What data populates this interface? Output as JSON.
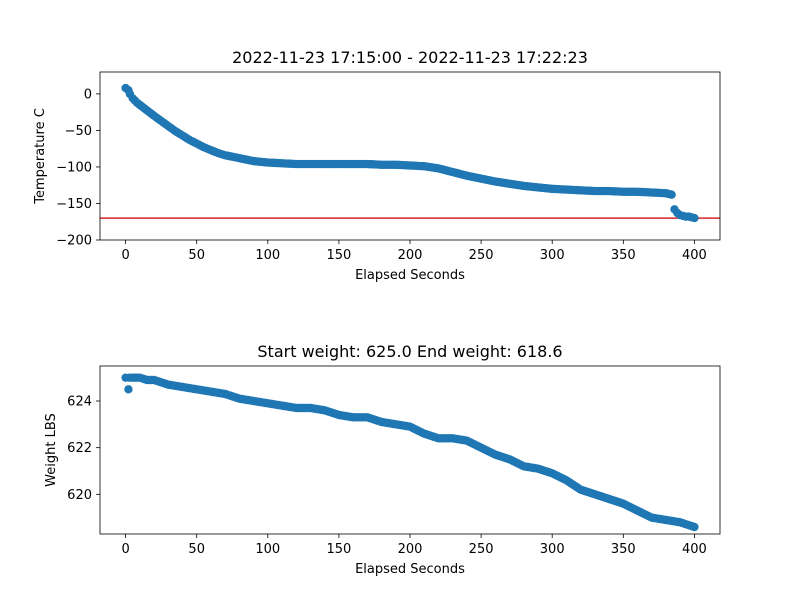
{
  "chart_data": [
    {
      "type": "scatter",
      "title": "2022-11-23 17:15:00 - 2022-11-23 17:22:23",
      "xlabel": "Elapsed Seconds",
      "ylabel": "Temperature C",
      "xlim": [
        -18,
        418
      ],
      "ylim": [
        -200,
        30
      ],
      "xticks": [
        0,
        50,
        100,
        150,
        200,
        250,
        300,
        350,
        400
      ],
      "yticks": [
        -200,
        -150,
        -100,
        -50,
        0
      ],
      "ytick_labels": [
        "−200",
        "−150",
        "−100",
        "−50",
        "0"
      ],
      "grid": false,
      "marker_color": "#1f77b4",
      "reference_line": {
        "y": -170,
        "color": "#d62728"
      },
      "x": [
        0,
        2,
        3,
        5,
        8,
        12,
        16,
        20,
        25,
        30,
        35,
        40,
        45,
        50,
        55,
        60,
        65,
        70,
        75,
        80,
        90,
        100,
        110,
        120,
        130,
        140,
        150,
        160,
        170,
        180,
        190,
        200,
        210,
        220,
        230,
        240,
        250,
        260,
        270,
        280,
        290,
        300,
        310,
        320,
        330,
        340,
        350,
        360,
        370,
        380,
        384,
        386,
        388,
        390,
        392,
        394,
        396,
        398,
        400
      ],
      "y": [
        8,
        5,
        0,
        -6,
        -12,
        -18,
        -24,
        -30,
        -37,
        -44,
        -51,
        -57,
        -63,
        -68,
        -73,
        -77,
        -81,
        -84,
        -86,
        -88,
        -92,
        -94,
        -95,
        -96,
        -96,
        -96,
        -96,
        -96,
        -96,
        -97,
        -97,
        -98,
        -99,
        -102,
        -107,
        -112,
        -116,
        -120,
        -123,
        -126,
        -128,
        -130,
        -131,
        -132,
        -133,
        -133,
        -134,
        -134,
        -135,
        -136,
        -138,
        -158,
        -163,
        -166,
        -167,
        -168,
        -168,
        -169,
        -170
      ]
    },
    {
      "type": "scatter",
      "title": "Start weight: 625.0 End weight: 618.6",
      "xlabel": "Elapsed Seconds",
      "ylabel": "Weight LBS",
      "xlim": [
        -18,
        418
      ],
      "ylim": [
        618.3,
        625.5
      ],
      "xticks": [
        0,
        50,
        100,
        150,
        200,
        250,
        300,
        350,
        400
      ],
      "yticks": [
        620,
        622,
        624
      ],
      "grid": false,
      "marker_color": "#1f77b4",
      "x": [
        0,
        2,
        3,
        5,
        10,
        15,
        20,
        30,
        40,
        50,
        60,
        70,
        80,
        90,
        100,
        110,
        120,
        130,
        140,
        150,
        160,
        170,
        180,
        190,
        200,
        210,
        220,
        230,
        240,
        250,
        260,
        270,
        280,
        290,
        300,
        310,
        320,
        330,
        340,
        350,
        360,
        370,
        380,
        390,
        395,
        400
      ],
      "y": [
        625.0,
        624.5,
        625.0,
        625.0,
        625.0,
        624.9,
        624.9,
        624.7,
        624.6,
        624.5,
        624.4,
        624.3,
        624.1,
        624.0,
        623.9,
        623.8,
        623.7,
        623.7,
        623.6,
        623.4,
        623.3,
        623.3,
        623.1,
        623.0,
        622.9,
        622.6,
        622.4,
        622.4,
        622.3,
        622.0,
        621.7,
        621.5,
        621.2,
        621.1,
        620.9,
        620.6,
        620.2,
        620.0,
        619.8,
        619.6,
        619.3,
        619.0,
        618.9,
        618.8,
        618.7,
        618.6
      ]
    }
  ]
}
